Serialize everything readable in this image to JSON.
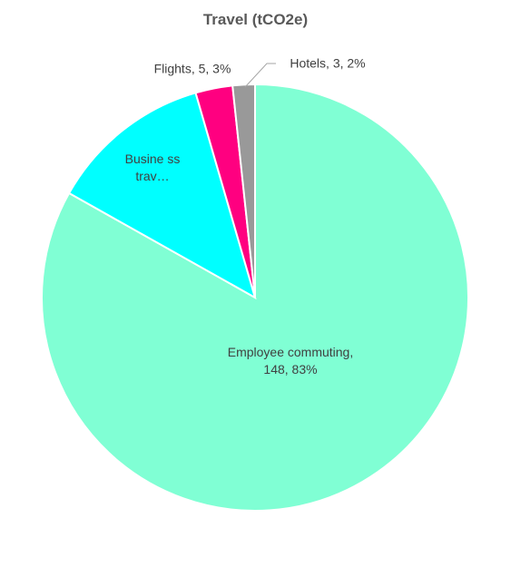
{
  "chart_data": {
    "type": "pie",
    "title": "Travel (tCO2e)",
    "categories": [
      "Employee commuting",
      "Busine ss trav…",
      "Flights",
      "Hotels"
    ],
    "values": [
      148,
      22,
      5,
      3
    ],
    "value_labels": [
      "Employee commuting, 148, 83%",
      "Busine ss trav…",
      "Flights, 5, 3%",
      "Hotels, 3, 2%"
    ],
    "colors": [
      "#80ffd4",
      "#00ffff",
      "#ff0080",
      "#999999"
    ]
  }
}
